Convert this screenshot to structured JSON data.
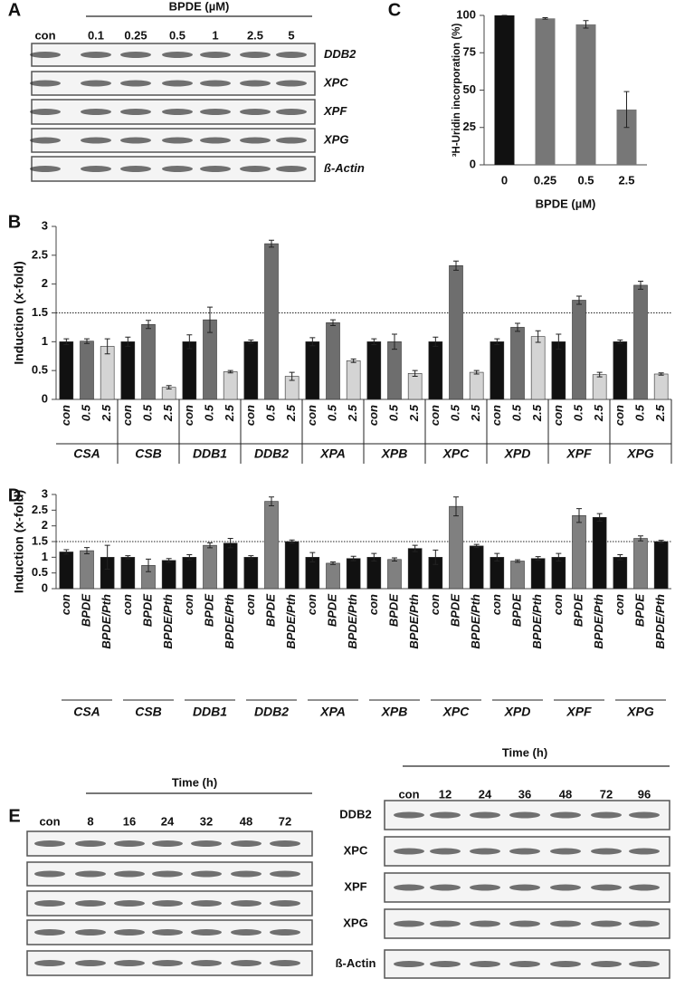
{
  "panel_labels": [
    "A",
    "B",
    "C",
    "D",
    "E"
  ],
  "blots": [
    {
      "header": "BPDE (µM)",
      "lanes": [
        "con",
        "0.1",
        "0.25",
        "0.5",
        "1",
        "2.5",
        "5"
      ],
      "rows": [
        "DDB2",
        "XPC",
        "XPF",
        "XPG",
        "ß-Actin"
      ]
    },
    {
      "header": "Time (h)",
      "lanes": [
        "con",
        "8",
        "16",
        "24",
        "32",
        "48",
        "72"
      ]
    },
    {
      "header": "Time (h)",
      "lanes": [
        "con",
        "12",
        "24",
        "36",
        "48",
        "72",
        "96"
      ],
      "rows": [
        "DDB2",
        "XPC",
        "XPF",
        "XPG",
        "ß-Actin"
      ]
    }
  ],
  "chart_data": [
    {
      "type": "bar",
      "y_label": "³H-Uridin incorporation (%)",
      "x_label": "BPDE (µM)",
      "categories": [
        "0",
        "0.25",
        "0.5",
        "2.5"
      ],
      "values": [
        100,
        98,
        94,
        37
      ],
      "errors": [
        0,
        0.5,
        2.5,
        12
      ],
      "colors": [
        "#111111",
        "#777777",
        "#777777",
        "#777777"
      ],
      "ylim": [
        0,
        100
      ],
      "yticks": [
        0,
        25,
        50,
        75,
        100
      ]
    },
    {
      "type": "grouped_bar",
      "y_label": "Induction (x-fold)",
      "categories": [
        "CSA",
        "CSB",
        "DDB1",
        "DDB2",
        "XPA",
        "XPB",
        "XPC",
        "XPD",
        "XPF",
        "XPG"
      ],
      "series": [
        {
          "name": "con",
          "color": "#111111",
          "values": [
            1.0,
            1.0,
            1.0,
            1.0,
            1.0,
            1.0,
            1.0,
            1.0,
            1.0,
            1.0
          ],
          "errors": [
            0.05,
            0.08,
            0.12,
            0.03,
            0.07,
            0.05,
            0.08,
            0.05,
            0.13,
            0.03
          ]
        },
        {
          "name": "0.5",
          "color": "#6e6e6e",
          "values": [
            1.01,
            1.3,
            1.38,
            2.7,
            1.33,
            1.0,
            2.32,
            1.25,
            1.72,
            1.98
          ],
          "errors": [
            0.04,
            0.07,
            0.22,
            0.06,
            0.05,
            0.13,
            0.08,
            0.07,
            0.07,
            0.07
          ]
        },
        {
          "name": "2.5",
          "color": "#d4d4d4",
          "values": [
            0.92,
            0.21,
            0.48,
            0.4,
            0.67,
            0.45,
            0.47,
            1.09,
            0.43,
            0.44
          ],
          "errors": [
            0.13,
            0.03,
            0.02,
            0.07,
            0.03,
            0.05,
            0.03,
            0.1,
            0.04,
            0.02
          ]
        }
      ],
      "ylim": [
        0,
        3
      ],
      "yticks": [
        0,
        0.5,
        1,
        1.5,
        2,
        2.5,
        3
      ],
      "threshold": 1.5
    },
    {
      "type": "grouped_bar",
      "y_label": "Induction (x-fold)",
      "categories": [
        "CSA",
        "CSB",
        "DDB1",
        "DDB2",
        "XPA",
        "XPB",
        "XPC",
        "XPD",
        "XPF",
        "XPG"
      ],
      "series": [
        {
          "name": "con",
          "color": "#111111",
          "values": [
            1.17,
            1.0,
            1.0,
            1.0,
            1.0,
            1.0,
            1.0,
            1.0,
            1.0,
            1.0
          ],
          "errors": [
            0.07,
            0.05,
            0.08,
            0.05,
            0.15,
            0.12,
            0.23,
            0.12,
            0.12,
            0.08
          ]
        },
        {
          "name": "BPDE",
          "color": "#808080",
          "values": [
            1.21,
            0.74,
            1.38,
            2.78,
            0.81,
            0.93,
            2.62,
            0.88,
            2.33,
            1.6
          ],
          "errors": [
            0.1,
            0.2,
            0.08,
            0.14,
            0.04,
            0.05,
            0.3,
            0.04,
            0.22,
            0.08
          ]
        },
        {
          "name": "BPDE/Pth",
          "color": "#111111",
          "values": [
            1.0,
            0.9,
            1.45,
            1.5,
            0.96,
            1.28,
            1.36,
            0.96,
            2.27,
            1.5
          ],
          "errors": [
            0.38,
            0.06,
            0.15,
            0.05,
            0.07,
            0.1,
            0.05,
            0.06,
            0.12,
            0.04
          ]
        }
      ],
      "ylim": [
        0,
        3
      ],
      "yticks": [
        0,
        0.5,
        1,
        1.5,
        2,
        2.5,
        3
      ],
      "threshold": 1.5
    }
  ]
}
